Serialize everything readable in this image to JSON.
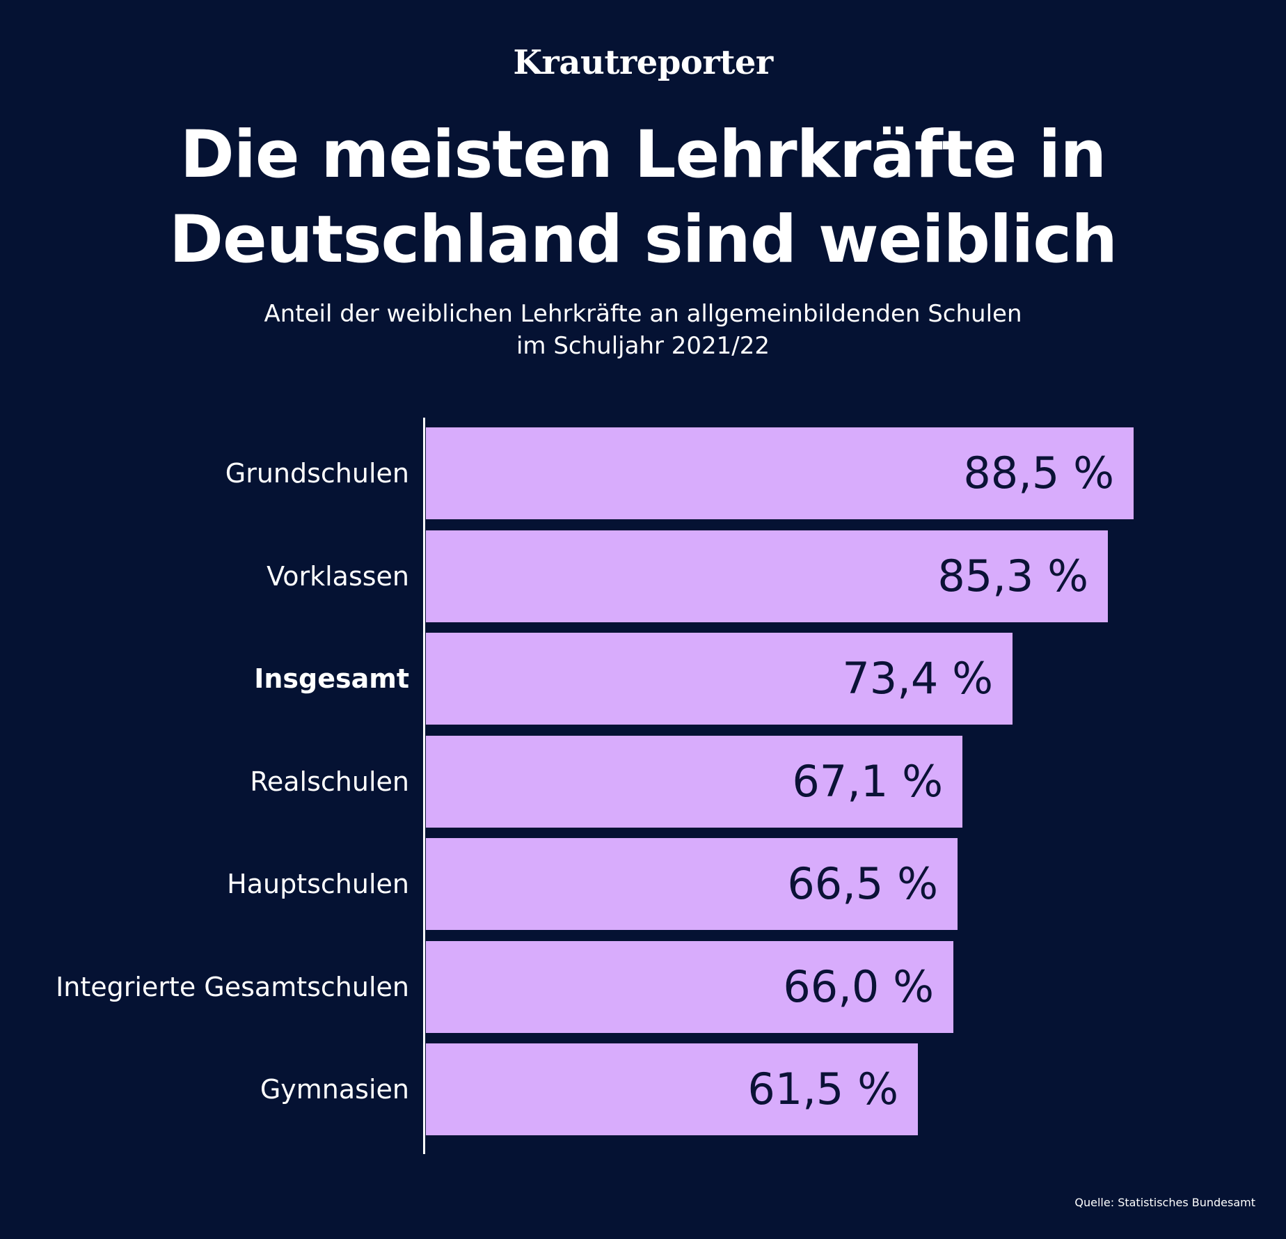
{
  "brand": "Krautreporter",
  "chart_data": {
    "type": "bar",
    "orientation": "horizontal",
    "title_lines": [
      "Die meisten Lehrkräfte in",
      "Deutschland sind weiblich"
    ],
    "subtitle_lines": [
      "Anteil der weiblichen Lehrkräfte an allgemeinbildenden Schulen",
      "im Schuljahr 2021/22"
    ],
    "unit": "%",
    "categories": [
      "Grundschulen",
      "Vorklassen",
      "Insgesamt",
      "Realschulen",
      "Hauptschulen",
      "Integrierte Gesamtschulen",
      "Gymnasien"
    ],
    "values": [
      88.5,
      85.3,
      73.4,
      67.1,
      66.5,
      66.0,
      61.5
    ],
    "value_labels": [
      "88,5 %",
      "85,3 %",
      "73,4 %",
      "67,1 %",
      "66,5 %",
      "66,0 %",
      "61,5 %"
    ],
    "highlighted_category": "Insgesamt",
    "xlim": [
      0,
      100
    ],
    "xlabel": "",
    "ylabel": "",
    "grid": false,
    "legend": "none"
  },
  "colors": {
    "background": "#051233",
    "bar": "#d8acfc",
    "bar_label": "#0b1236",
    "text": "#ffffff"
  },
  "source": "Quelle: Statistisches Bundesamt"
}
